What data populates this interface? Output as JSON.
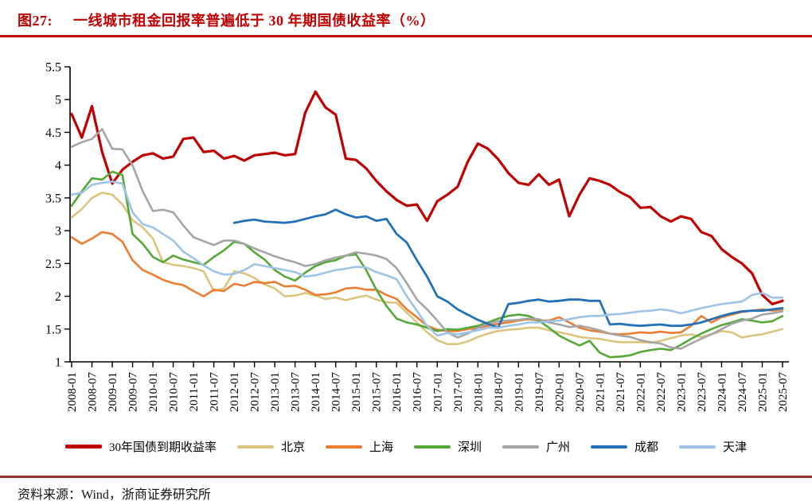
{
  "header": {
    "figure_label": "图27:",
    "title": "一线城市租金回报率普遍低于 30 年期国债收益率（%）"
  },
  "footer": {
    "source": "资料来源：Wind，浙商证券研究所"
  },
  "colors": {
    "title_red": "#C00000",
    "top_rule": "#C00000",
    "bottom_rule": "#A03227",
    "axis": "#000000"
  },
  "chart_data": {
    "type": "line",
    "title": "一线城市租金回报率普遍低于 30 年期国债收益率（%）",
    "xlabel": "",
    "ylabel": "",
    "ylim": [
      1,
      5.5
    ],
    "grid": false,
    "legend_position": "bottom",
    "y_tick_labels": [
      "1",
      "1.5",
      "2",
      "2.5",
      "3",
      "3.5",
      "4",
      "4.5",
      "5",
      "5.5"
    ],
    "y_tick_values": [
      1,
      1.5,
      2,
      2.5,
      3,
      3.5,
      4,
      4.5,
      5,
      5.5
    ],
    "x_tick_labels": [
      "2008-01",
      "2008-07",
      "2009-01",
      "2009-07",
      "2010-01",
      "2010-07",
      "2011-01",
      "2011-07",
      "2012-01",
      "2012-07",
      "2013-01",
      "2013-07",
      "2014-01",
      "2014-07",
      "2015-01",
      "2015-07",
      "2016-01",
      "2016-07",
      "2017-01",
      "2017-07",
      "2018-01",
      "2018-07",
      "2019-01",
      "2019-07",
      "2020-01",
      "2020-07",
      "2021-01",
      "2021-07",
      "2022-01",
      "2022-07",
      "2023-01",
      "2023-07",
      "2024-01",
      "2024-07",
      "2025-01",
      "2025-07"
    ],
    "x_tick_interval_months": 6,
    "series": [
      {
        "key": "bond30y",
        "name": "30年国债到期收益率",
        "color": "#C00000",
        "width": 3.2,
        "start_month": 0,
        "step_months": 3,
        "values": [
          4.78,
          4.42,
          4.9,
          4.2,
          3.72,
          3.93,
          4.05,
          4.15,
          4.18,
          4.1,
          4.13,
          4.4,
          4.42,
          4.2,
          4.22,
          4.1,
          4.14,
          4.07,
          4.15,
          4.17,
          4.19,
          4.15,
          4.17,
          4.8,
          5.12,
          4.88,
          4.77,
          4.1,
          4.08,
          3.95,
          3.76,
          3.6,
          3.47,
          3.38,
          3.4,
          3.15,
          3.45,
          3.55,
          3.67,
          4.05,
          4.33,
          4.25,
          4.09,
          3.88,
          3.73,
          3.7,
          3.86,
          3.7,
          3.78,
          3.22,
          3.55,
          3.8,
          3.76,
          3.7,
          3.59,
          3.51,
          3.35,
          3.36,
          3.22,
          3.14,
          3.22,
          3.18,
          2.98,
          2.92,
          2.72,
          2.6,
          2.5,
          2.35,
          2.02,
          1.88,
          1.93
        ]
      },
      {
        "key": "beijing",
        "name": "北京",
        "color": "#DBC57E",
        "width": 2.6,
        "start_month": 0,
        "step_months": 3,
        "values": [
          3.2,
          3.33,
          3.5,
          3.58,
          3.55,
          3.4,
          3.16,
          3.05,
          2.88,
          2.52,
          2.48,
          2.46,
          2.43,
          2.38,
          2.08,
          2.12,
          2.38,
          2.35,
          2.28,
          2.18,
          2.12,
          2.0,
          2.01,
          2.05,
          2.01,
          1.96,
          1.98,
          1.94,
          1.98,
          2.01,
          1.95,
          1.91,
          1.9,
          1.75,
          1.6,
          1.45,
          1.33,
          1.27,
          1.27,
          1.31,
          1.38,
          1.43,
          1.47,
          1.49,
          1.5,
          1.52,
          1.52,
          1.48,
          1.45,
          1.42,
          1.38,
          1.36,
          1.35,
          1.32,
          1.3,
          1.3,
          1.3,
          1.29,
          1.32,
          1.36,
          1.4,
          1.42,
          1.38,
          1.42,
          1.47,
          1.45,
          1.37,
          1.4,
          1.42,
          1.46,
          1.5
        ]
      },
      {
        "key": "shanghai",
        "name": "上海",
        "color": "#ED7D31",
        "width": 2.6,
        "start_month": 0,
        "step_months": 3,
        "values": [
          2.9,
          2.8,
          2.88,
          2.98,
          2.95,
          2.83,
          2.55,
          2.4,
          2.33,
          2.25,
          2.2,
          2.17,
          2.08,
          2.0,
          2.1,
          2.08,
          2.19,
          2.16,
          2.22,
          2.2,
          2.22,
          2.15,
          2.16,
          2.1,
          2.02,
          2.03,
          2.06,
          2.12,
          2.13,
          2.1,
          2.1,
          2.02,
          1.96,
          1.8,
          1.68,
          1.55,
          1.49,
          1.47,
          1.47,
          1.5,
          1.52,
          1.55,
          1.58,
          1.6,
          1.63,
          1.65,
          1.63,
          1.63,
          1.68,
          1.6,
          1.52,
          1.48,
          1.46,
          1.43,
          1.42,
          1.43,
          1.45,
          1.44,
          1.46,
          1.44,
          1.45,
          1.55,
          1.7,
          1.6,
          1.68,
          1.72,
          1.76,
          1.78,
          1.8,
          1.78,
          1.8
        ]
      },
      {
        "key": "shenzhen",
        "name": "深圳",
        "color": "#55A838",
        "width": 2.6,
        "start_month": 0,
        "step_months": 3,
        "values": [
          3.38,
          3.6,
          3.8,
          3.78,
          3.9,
          3.85,
          2.95,
          2.8,
          2.6,
          2.52,
          2.62,
          2.56,
          2.52,
          2.48,
          2.6,
          2.7,
          2.83,
          2.8,
          2.67,
          2.56,
          2.4,
          2.3,
          2.24,
          2.36,
          2.46,
          2.52,
          2.55,
          2.62,
          2.64,
          2.4,
          2.1,
          1.85,
          1.66,
          1.6,
          1.57,
          1.52,
          1.47,
          1.5,
          1.49,
          1.52,
          1.55,
          1.6,
          1.66,
          1.7,
          1.72,
          1.7,
          1.63,
          1.52,
          1.4,
          1.32,
          1.25,
          1.32,
          1.14,
          1.07,
          1.08,
          1.1,
          1.15,
          1.18,
          1.2,
          1.18,
          1.26,
          1.35,
          1.43,
          1.5,
          1.56,
          1.6,
          1.65,
          1.63,
          1.6,
          1.62,
          1.7
        ]
      },
      {
        "key": "guangzhou",
        "name": "广州",
        "color": "#A5A5A5",
        "width": 2.6,
        "start_month": 0,
        "step_months": 3,
        "values": [
          4.28,
          4.35,
          4.4,
          4.55,
          4.25,
          4.24,
          4.0,
          3.6,
          3.3,
          3.32,
          3.28,
          3.08,
          2.9,
          2.84,
          2.78,
          2.85,
          2.85,
          2.8,
          2.73,
          2.67,
          2.61,
          2.56,
          2.52,
          2.46,
          2.49,
          2.55,
          2.59,
          2.62,
          2.67,
          2.65,
          2.62,
          2.57,
          2.43,
          2.2,
          1.95,
          1.8,
          1.63,
          1.45,
          1.37,
          1.43,
          1.52,
          1.58,
          1.62,
          1.63,
          1.64,
          1.66,
          1.65,
          1.6,
          1.57,
          1.53,
          1.55,
          1.52,
          1.48,
          1.43,
          1.4,
          1.38,
          1.33,
          1.3,
          1.28,
          1.22,
          1.2,
          1.28,
          1.35,
          1.42,
          1.5,
          1.58,
          1.63,
          1.66,
          1.72,
          1.74,
          1.77
        ]
      },
      {
        "key": "chengdu",
        "name": "成都",
        "color": "#2471B8",
        "width": 2.8,
        "start_month": 48,
        "step_months": 3,
        "values": [
          3.12,
          3.15,
          3.17,
          3.14,
          3.13,
          3.12,
          3.14,
          3.18,
          3.22,
          3.25,
          3.32,
          3.25,
          3.2,
          3.22,
          3.15,
          3.18,
          2.95,
          2.82,
          2.55,
          2.3,
          2.0,
          1.92,
          1.8,
          1.72,
          1.64,
          1.58,
          1.52,
          1.88,
          1.9,
          1.93,
          1.95,
          1.92,
          1.93,
          1.95,
          1.95,
          1.93,
          1.93,
          1.57,
          1.58,
          1.56,
          1.55,
          1.56,
          1.57,
          1.55,
          1.55,
          1.57,
          1.6,
          1.65,
          1.7,
          1.74,
          1.77,
          1.78,
          1.78,
          1.8,
          1.82
        ]
      },
      {
        "key": "tianjin",
        "name": "天津",
        "color": "#9DC3E6",
        "width": 2.6,
        "start_month": 0,
        "step_months": 3,
        "values": [
          3.55,
          3.58,
          3.7,
          3.73,
          3.75,
          3.72,
          3.28,
          3.1,
          3.05,
          2.95,
          2.85,
          2.68,
          2.58,
          2.47,
          2.38,
          2.33,
          2.34,
          2.4,
          2.49,
          2.46,
          2.43,
          2.4,
          2.37,
          2.3,
          2.32,
          2.36,
          2.4,
          2.42,
          2.45,
          2.44,
          2.37,
          2.32,
          2.26,
          2.0,
          1.78,
          1.55,
          1.4,
          1.44,
          1.42,
          1.45,
          1.48,
          1.52,
          1.52,
          1.55,
          1.57,
          1.6,
          1.6,
          1.62,
          1.63,
          1.65,
          1.68,
          1.7,
          1.7,
          1.72,
          1.73,
          1.75,
          1.77,
          1.78,
          1.8,
          1.78,
          1.74,
          1.78,
          1.82,
          1.85,
          1.88,
          1.9,
          1.92,
          2.02,
          2.05,
          1.98,
          1.98
        ]
      }
    ]
  }
}
